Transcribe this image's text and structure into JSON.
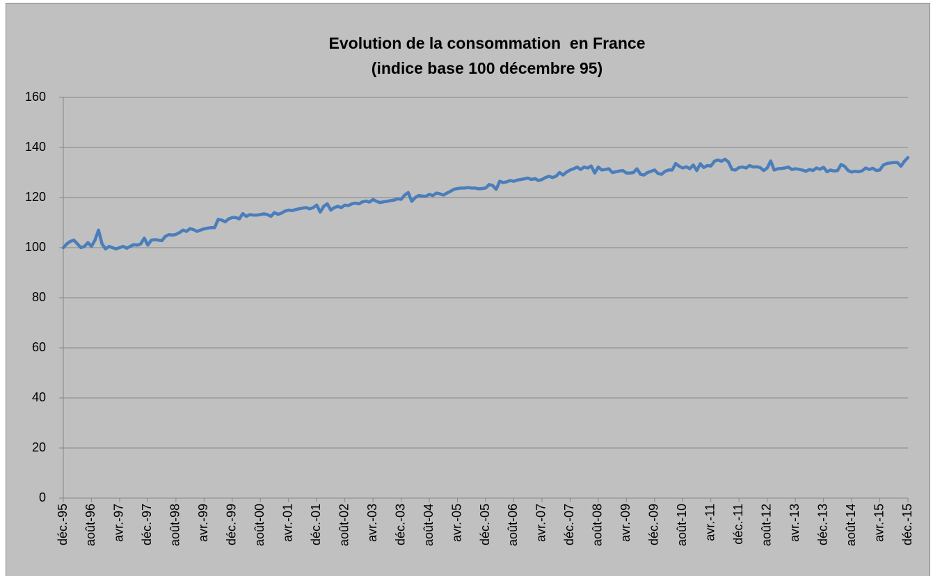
{
  "chart_data": {
    "type": "line",
    "title": "Evolution de la consommation  en France",
    "subtitle": "(indice base 100 décembre 95)",
    "categories": [
      "déc.-95",
      null,
      null,
      null,
      null,
      null,
      null,
      null,
      "août-96",
      null,
      null,
      null,
      null,
      null,
      null,
      null,
      "avr.-97",
      null,
      null,
      null,
      null,
      null,
      null,
      null,
      "déc.-97",
      null,
      null,
      null,
      null,
      null,
      null,
      null,
      "août-98",
      null,
      null,
      null,
      null,
      null,
      null,
      null,
      "avr.-99",
      null,
      null,
      null,
      null,
      null,
      null,
      null,
      "déc.-99",
      null,
      null,
      null,
      null,
      null,
      null,
      null,
      "août-00",
      null,
      null,
      null,
      null,
      null,
      null,
      null,
      "avr.-01",
      null,
      null,
      null,
      null,
      null,
      null,
      null,
      "déc.-01",
      null,
      null,
      null,
      null,
      null,
      null,
      null,
      "août-02",
      null,
      null,
      null,
      null,
      null,
      null,
      null,
      "avr.-03",
      null,
      null,
      null,
      null,
      null,
      null,
      null,
      "déc.-03",
      null,
      null,
      null,
      null,
      null,
      null,
      null,
      "août-04",
      null,
      null,
      null,
      null,
      null,
      null,
      null,
      "avr.-05",
      null,
      null,
      null,
      null,
      null,
      null,
      null,
      "déc.-05",
      null,
      null,
      null,
      null,
      null,
      null,
      null,
      "août-06",
      null,
      null,
      null,
      null,
      null,
      null,
      null,
      "avr.-07",
      null,
      null,
      null,
      null,
      null,
      null,
      null,
      "déc.-07",
      null,
      null,
      null,
      null,
      null,
      null,
      null,
      "août-08",
      null,
      null,
      null,
      null,
      null,
      null,
      null,
      "avr.-09",
      null,
      null,
      null,
      null,
      null,
      null,
      null,
      "déc.-09",
      null,
      null,
      null,
      null,
      null,
      null,
      null,
      "août-10",
      null,
      null,
      null,
      null,
      null,
      null,
      null,
      "avr.-11",
      null,
      null,
      null,
      null,
      null,
      null,
      null,
      "déc.-11",
      null,
      null,
      null,
      null,
      null,
      null,
      null,
      "août-12",
      null,
      null,
      null,
      null,
      null,
      null,
      null,
      "avr.-13",
      null,
      null,
      null,
      null,
      null,
      null,
      null,
      "déc.-13",
      null,
      null,
      null,
      null,
      null,
      null,
      null,
      "août-14",
      null,
      null,
      null,
      null,
      null,
      null,
      null,
      "avr.-15",
      null,
      null,
      null,
      null,
      null,
      null,
      null,
      "déc.-15"
    ],
    "series": [
      {
        "color": "#4a7ebb",
        "values": [
          100,
          101.5,
          102.5,
          103,
          101.5,
          100,
          100.5,
          102,
          100.5,
          103,
          107,
          101.5,
          99.5,
          100.5,
          100,
          99.5,
          100,
          100.5,
          99.8,
          100.5,
          101.2,
          101,
          101.5,
          103.8,
          101,
          103,
          103.2,
          103,
          102.8,
          104.5,
          105.2,
          105,
          105.3,
          106,
          107,
          106.5,
          107.6,
          107.2,
          106.5,
          107,
          107.5,
          107.8,
          108,
          108,
          111.3,
          111,
          110.3,
          111.5,
          112,
          112,
          111.5,
          113.6,
          112.5,
          113.2,
          113,
          113,
          113.2,
          113.5,
          113.2,
          112.5,
          114,
          113.3,
          113.8,
          114.6,
          115,
          114.8,
          115.2,
          115.5,
          115.8,
          116,
          115.5,
          116,
          117,
          114.2,
          116.5,
          117.5,
          115,
          116,
          116.5,
          116,
          117,
          116.8,
          117.5,
          117.8,
          117.5,
          118.3,
          118.6,
          118.2,
          119.2,
          118.5,
          118,
          118.3,
          118.5,
          118.8,
          119,
          119.5,
          119.3,
          121,
          122,
          118.5,
          120,
          120.8,
          120.6,
          120.5,
          121.3,
          120.8,
          121.8,
          121.5,
          121,
          121.8,
          122.5,
          123.3,
          123.6,
          123.8,
          123.8,
          124,
          123.8,
          123.8,
          123.5,
          123.6,
          123.8,
          125.2,
          124.8,
          123.3,
          126.5,
          126,
          126.3,
          126.8,
          126.5,
          127,
          127.2,
          127.5,
          127.8,
          127.2,
          127.6,
          126.8,
          127.2,
          128,
          128.5,
          128,
          128.5,
          130,
          129,
          130.2,
          131,
          131.5,
          132.2,
          131.2,
          132.2,
          131.8,
          132.6,
          129.8,
          132.2,
          131,
          131.2,
          131.5,
          130,
          130.3,
          130.6,
          130.8,
          129.8,
          129.8,
          130,
          131.5,
          129.3,
          129,
          130,
          130.5,
          131,
          129.6,
          129.3,
          130.5,
          131,
          131,
          133.6,
          132.5,
          131.8,
          132.3,
          131.5,
          133,
          130.8,
          133.5,
          132,
          132.8,
          132.6,
          134.5,
          135,
          134.5,
          135.3,
          134.2,
          131.2,
          131,
          132,
          132.2,
          131.8,
          132.8,
          132.2,
          132.3,
          132,
          130.8,
          131.8,
          134.6,
          131,
          131.5,
          131.6,
          131.8,
          132.2,
          131.2,
          131.5,
          131.3,
          131,
          130.5,
          131.2,
          130.8,
          131.8,
          131.3,
          132.1,
          130.3,
          131,
          130.6,
          130.8,
          133.2,
          132.5,
          130.8,
          130.2,
          130.5,
          130.3,
          130.7,
          131.8,
          131.2,
          131.7,
          130.8,
          131,
          133,
          133.6,
          133.8,
          134,
          134,
          132.5,
          134.5,
          136
        ]
      }
    ],
    "ylim": [
      0,
      160
    ],
    "yticks": [
      0,
      20,
      40,
      60,
      80,
      100,
      120,
      140,
      160
    ],
    "grid": true
  }
}
